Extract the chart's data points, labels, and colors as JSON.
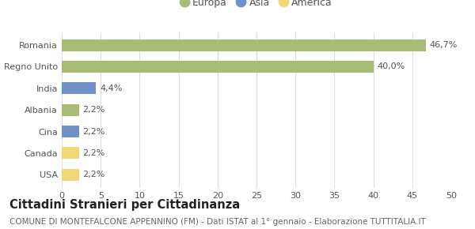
{
  "categories": [
    "USA",
    "Canada",
    "Cina",
    "Albania",
    "India",
    "Regno Unito",
    "Romania"
  ],
  "values": [
    2.2,
    2.2,
    2.2,
    2.2,
    4.4,
    40.0,
    46.7
  ],
  "labels": [
    "2,2%",
    "2,2%",
    "2,2%",
    "2,2%",
    "4,4%",
    "40,0%",
    "46,7%"
  ],
  "colors": [
    "#f0d878",
    "#f0d878",
    "#7090c8",
    "#a8bc78",
    "#7090c8",
    "#a8bc78",
    "#a8bc78"
  ],
  "legend_items": [
    {
      "label": "Europa",
      "color": "#a8bc78"
    },
    {
      "label": "Asia",
      "color": "#7090c8"
    },
    {
      "label": "America",
      "color": "#f0d878"
    }
  ],
  "xlim": [
    0,
    50
  ],
  "xticks": [
    0,
    5,
    10,
    15,
    20,
    25,
    30,
    35,
    40,
    45,
    50
  ],
  "title": "Cittadini Stranieri per Cittadinanza",
  "subtitle": "COMUNE DI MONTEFALCONE APPENNINO (FM) - Dati ISTAT al 1° gennaio - Elaborazione TUTTITALIA.IT",
  "grid_color": "#dddddd",
  "bg_color": "#ffffff",
  "bar_height": 0.55,
  "title_fontsize": 10.5,
  "subtitle_fontsize": 7.5,
  "label_fontsize": 8,
  "tick_fontsize": 8,
  "legend_fontsize": 9
}
